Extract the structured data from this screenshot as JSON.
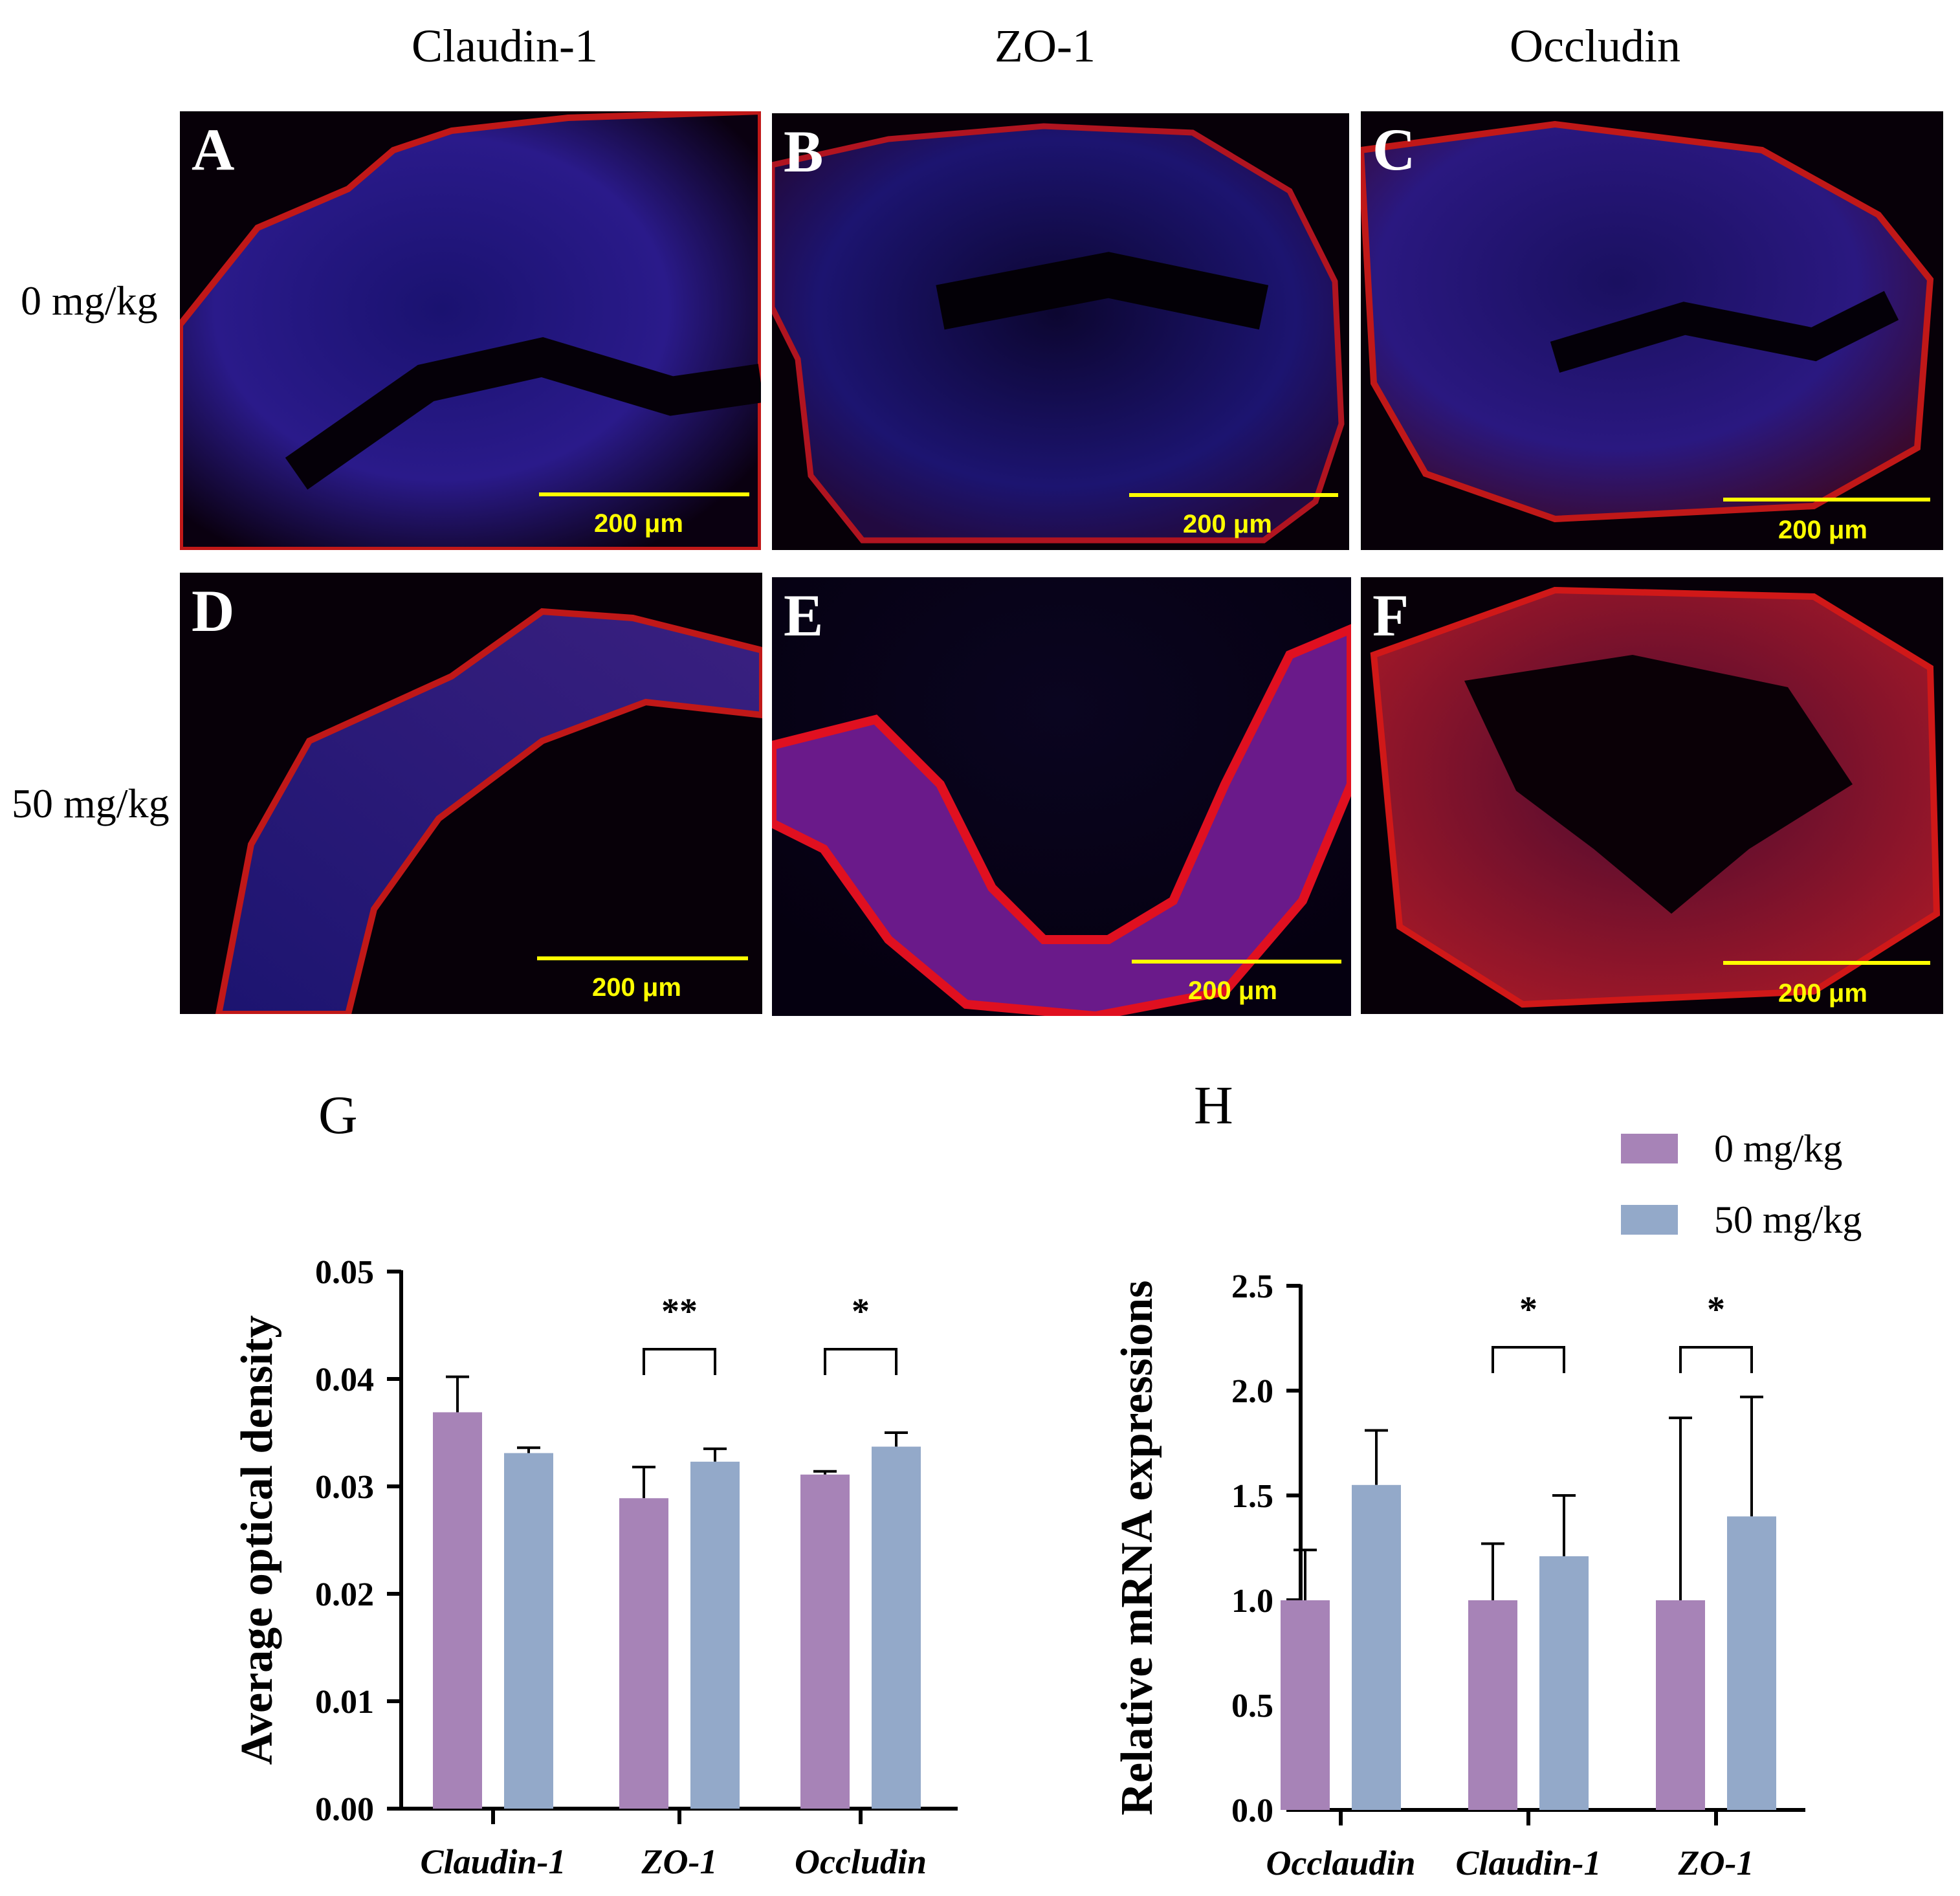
{
  "figure": {
    "columns": [
      "Claudin-1",
      "ZO-1",
      "Occludin"
    ],
    "rows": [
      "0 mg/kg",
      "50 mg/kg"
    ],
    "panels": [
      {
        "letter": "A",
        "scale": "200 μm"
      },
      {
        "letter": "B",
        "scale": "200 μm"
      },
      {
        "letter": "C",
        "scale": "200 μm"
      },
      {
        "letter": "D",
        "scale": "200 μm"
      },
      {
        "letter": "E",
        "scale": "200 μm"
      },
      {
        "letter": "F",
        "scale": "200 μm"
      }
    ]
  },
  "legend": [
    {
      "label": "0 mg/kg",
      "color": "#a783b7"
    },
    {
      "label": "50 mg/kg",
      "color": "#93a9c9"
    }
  ],
  "chart_data": [
    {
      "panel": "G",
      "type": "bar",
      "categories": [
        "Claudin-1",
        "ZO-1",
        "Occludin"
      ],
      "series": [
        {
          "name": "0 mg/kg",
          "values": [
            0.0369,
            0.0289,
            0.0311
          ],
          "errors": [
            0.0033,
            0.0029,
            0.0003
          ]
        },
        {
          "name": "50 mg/kg",
          "values": [
            0.0331,
            0.0323,
            0.0337
          ],
          "errors": [
            0.0005,
            0.0012,
            0.0013
          ]
        }
      ],
      "ylabel": "Average optical density",
      "ylim": [
        0,
        0.05
      ],
      "yticks": [
        "0.00",
        "0.01",
        "0.02",
        "0.03",
        "0.04",
        "0.05"
      ],
      "significance": [
        {
          "category": "ZO-1",
          "label": "**"
        },
        {
          "category": "Occludin",
          "label": "*"
        }
      ]
    },
    {
      "panel": "H",
      "type": "bar",
      "categories": [
        "Occlaudin",
        "Claudin-1",
        "ZO-1"
      ],
      "series": [
        {
          "name": "0 mg/kg",
          "values": [
            1.0,
            1.0,
            1.0
          ],
          "errors": [
            0.24,
            0.27,
            0.87
          ]
        },
        {
          "name": "50 mg/kg",
          "values": [
            1.55,
            1.21,
            1.4
          ],
          "errors": [
            0.26,
            0.29,
            0.57
          ]
        }
      ],
      "ylabel": "Relative mRNA expressions",
      "ylim": [
        0,
        2.5
      ],
      "yticks": [
        "0.0",
        "0.5",
        "1.0",
        "1.5",
        "2.0",
        "2.5"
      ],
      "significance": [
        {
          "category": "Claudin-1",
          "label": "*"
        },
        {
          "category": "ZO-1",
          "label": "*"
        }
      ]
    }
  ]
}
